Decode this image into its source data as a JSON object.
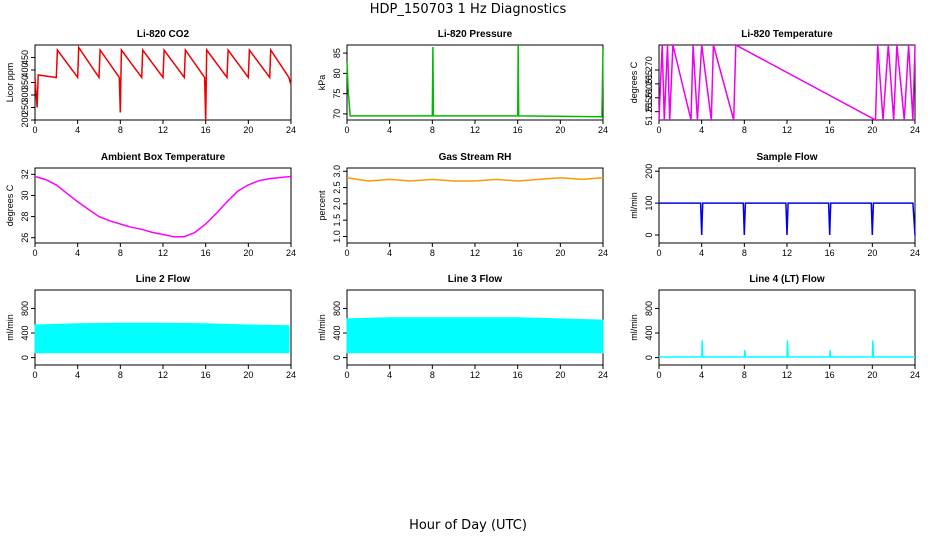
{
  "figure": {
    "title": "HDP_150703  1 Hz Diagnostics",
    "xlabel": "Hour of Day (UTC)"
  },
  "chart_data": [
    {
      "type": "line",
      "title": "Li-820 CO2",
      "ylabel": "Licor ppm",
      "color": "#ee0000",
      "xlim": [
        0,
        24
      ],
      "ylim": [
        200,
        500
      ],
      "xticks": [
        "0",
        "4",
        "8",
        "12",
        "16",
        "20",
        "24"
      ],
      "yticks": [
        "200",
        "250",
        "300",
        "350",
        "400",
        "450"
      ],
      "series": [
        {
          "x": [
            0,
            0.2,
            0.3,
            2,
            2.1,
            4,
            4.1,
            6,
            6.1,
            7.9,
            8,
            8.1,
            10,
            10.1,
            12,
            12.1,
            14,
            14.1,
            15.9,
            16,
            16.1,
            18,
            18.1,
            20,
            20.1,
            22,
            22.1,
            23.8,
            24
          ],
          "y": [
            370,
            250,
            380,
            370,
            480,
            370,
            490,
            370,
            480,
            370,
            230,
            480,
            370,
            480,
            370,
            480,
            370,
            480,
            370,
            200,
            480,
            370,
            480,
            370,
            480,
            370,
            480,
            370,
            340
          ]
        }
      ]
    },
    {
      "type": "line",
      "title": "Li-820 Pressure",
      "ylabel": "kPa",
      "color": "#00bb00",
      "xlim": [
        0,
        24
      ],
      "ylim": [
        68.5,
        87
      ],
      "xticks": [
        "0",
        "4",
        "8",
        "12",
        "16",
        "20",
        "24"
      ],
      "yticks": [
        "70",
        "75",
        "80",
        "85"
      ],
      "series": [
        {
          "x": [
            0,
            0.1,
            0.3,
            8,
            8.05,
            8.1,
            16,
            16.05,
            16.1,
            23.9,
            24
          ],
          "y": [
            83,
            76,
            69.5,
            69.5,
            86.5,
            69.5,
            69.5,
            87,
            69.5,
            69.3,
            86
          ]
        }
      ]
    },
    {
      "type": "line",
      "title": "Li-820 Temperature",
      "ylabel": "degrees C",
      "color": "#ee00ee",
      "xlim": [
        0,
        24
      ],
      "ylim": [
        51.252,
        51.279
      ],
      "xticks": [
        "0",
        "4",
        "8",
        "12",
        "16",
        "20",
        "24"
      ],
      "yticks": [
        "51.255",
        "51.260",
        "51.265",
        "51.270"
      ],
      "series": [
        {
          "x": [
            0,
            0.3,
            0.5,
            0.8,
            1,
            1.3,
            3,
            3.2,
            3.6,
            4,
            4.9,
            5.1,
            7,
            7.2,
            20.3,
            20.5,
            21,
            21.5,
            22,
            22.3,
            23,
            23.4,
            23.8,
            24
          ],
          "y": [
            51.252,
            51.279,
            51.252,
            51.279,
            51.252,
            51.279,
            51.252,
            51.279,
            51.252,
            51.279,
            51.252,
            51.279,
            51.252,
            51.279,
            51.252,
            51.279,
            51.252,
            51.279,
            51.252,
            51.279,
            51.252,
            51.279,
            51.252,
            51.279
          ]
        }
      ]
    },
    {
      "type": "line",
      "title": "Ambient Box Temperature",
      "ylabel": "degrees C",
      "color": "#ff00ff",
      "xlim": [
        0,
        24
      ],
      "ylim": [
        25.5,
        32.6
      ],
      "xticks": [
        "0",
        "4",
        "8",
        "12",
        "16",
        "20",
        "24"
      ],
      "yticks": [
        "26",
        "28",
        "30",
        "32"
      ],
      "series": [
        {
          "x": [
            0,
            1,
            2,
            3,
            4,
            5,
            6,
            7,
            8,
            9,
            10,
            11,
            12,
            13,
            14,
            15,
            16,
            17,
            18,
            19,
            20,
            21,
            22,
            23,
            24
          ],
          "y": [
            31.8,
            31.5,
            31.0,
            30.2,
            29.4,
            28.7,
            28.0,
            27.6,
            27.3,
            27.0,
            26.8,
            26.5,
            26.3,
            26.1,
            26.1,
            26.5,
            27.3,
            28.3,
            29.4,
            30.4,
            31.0,
            31.4,
            31.6,
            31.7,
            31.8
          ]
        }
      ]
    },
    {
      "type": "line",
      "title": "Gas Stream RH",
      "ylabel": "percent",
      "color": "#ff9900",
      "xlim": [
        0,
        24
      ],
      "ylim": [
        0.8,
        3.1
      ],
      "xticks": [
        "0",
        "4",
        "8",
        "12",
        "16",
        "20",
        "24"
      ],
      "yticks": [
        "1.0",
        "1.5",
        "2.0",
        "2.5",
        "3.0"
      ],
      "series": [
        {
          "x": [
            0,
            2,
            4,
            6,
            8,
            10,
            12,
            14,
            16,
            18,
            20,
            22,
            24
          ],
          "y": [
            2.8,
            2.7,
            2.75,
            2.7,
            2.75,
            2.7,
            2.7,
            2.75,
            2.7,
            2.75,
            2.8,
            2.75,
            2.8
          ]
        }
      ]
    },
    {
      "type": "line",
      "title": "Sample Flow",
      "ylabel": "ml/min",
      "color": "#0000ee",
      "xlim": [
        0,
        24
      ],
      "ylim": [
        -25,
        210
      ],
      "xticks": [
        "0",
        "4",
        "8",
        "12",
        "16",
        "20",
        "24"
      ],
      "yticks": [
        "0",
        "100",
        "200"
      ],
      "series": [
        {
          "x": [
            0,
            3.9,
            4,
            4.1,
            7.9,
            8,
            8.1,
            11.9,
            12,
            12.1,
            15.9,
            16,
            16.1,
            19.9,
            20,
            20.1,
            23.8,
            24
          ],
          "y": [
            100,
            100,
            0,
            100,
            100,
            0,
            100,
            100,
            0,
            100,
            100,
            0,
            100,
            100,
            0,
            100,
            100,
            0
          ]
        }
      ]
    },
    {
      "type": "area",
      "title": "Line 2 Flow",
      "ylabel": "ml/min",
      "color": "#00ffff",
      "xlim": [
        0,
        24
      ],
      "ylim": [
        -120,
        1100
      ],
      "xticks": [
        "0",
        "4",
        "8",
        "12",
        "16",
        "20",
        "24"
      ],
      "yticks": [
        "0",
        "400",
        "800"
      ],
      "series": [
        {
          "x": [
            0,
            4,
            8,
            12,
            16,
            20,
            23.8
          ],
          "y": [
            530,
            550,
            560,
            560,
            550,
            530,
            520
          ]
        }
      ]
    },
    {
      "type": "area",
      "title": "Line 3 Flow",
      "ylabel": "ml/min",
      "color": "#00ffff",
      "xlim": [
        0,
        24
      ],
      "ylim": [
        -120,
        1100
      ],
      "xticks": [
        "0",
        "4",
        "8",
        "12",
        "16",
        "20",
        "24"
      ],
      "yticks": [
        "0",
        "400",
        "800"
      ],
      "series": [
        {
          "x": [
            0,
            4,
            8,
            12,
            16,
            20,
            24
          ],
          "y": [
            630,
            650,
            650,
            650,
            650,
            630,
            610
          ]
        }
      ]
    },
    {
      "type": "line",
      "title": "Line 4 (LT) Flow",
      "ylabel": "ml/min",
      "color": "#00ffff",
      "xlim": [
        0,
        24
      ],
      "ylim": [
        -120,
        1100
      ],
      "xticks": [
        "0",
        "4",
        "8",
        "12",
        "16",
        "20",
        "24"
      ],
      "yticks": [
        "0",
        "400",
        "800"
      ],
      "series": [
        {
          "x": [
            0,
            4,
            4.05,
            4.1,
            8,
            8.05,
            8.1,
            12,
            12.05,
            12.1,
            16,
            16.05,
            16.1,
            20,
            20.05,
            20.1,
            24
          ],
          "y": [
            10,
            10,
            280,
            10,
            10,
            120,
            10,
            10,
            280,
            10,
            10,
            120,
            10,
            10,
            280,
            10,
            10
          ]
        }
      ]
    }
  ]
}
